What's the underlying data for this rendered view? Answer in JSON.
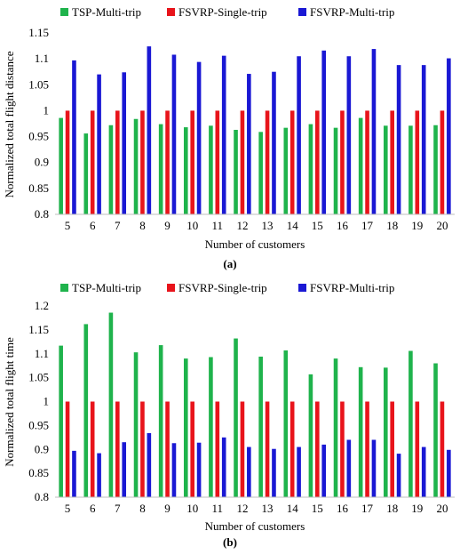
{
  "chart_data": [
    {
      "type": "bar",
      "panel_label": "(a)",
      "title": "",
      "xlabel": "Number of customers",
      "ylabel": "Normalized total flight distance",
      "ylim": [
        0.8,
        1.15
      ],
      "yticks": [
        0.8,
        0.85,
        0.9,
        0.95,
        1,
        1.05,
        1.1,
        1.15
      ],
      "ytick_labels": [
        "0.8",
        "0.85",
        "0.9",
        "0.95",
        "1",
        "1.05",
        "1.1",
        "1.15"
      ],
      "grid": false,
      "legend_position": "top",
      "categories": [
        "5",
        "6",
        "7",
        "8",
        "9",
        "10",
        "11",
        "12",
        "13",
        "14",
        "15",
        "16",
        "17",
        "18",
        "19",
        "20"
      ],
      "series": [
        {
          "name": "TSP-Multi-trip",
          "color": "#1fb34c",
          "values": [
            0.986,
            0.956,
            0.972,
            0.984,
            0.974,
            0.968,
            0.971,
            0.963,
            0.959,
            0.967,
            0.974,
            0.967,
            0.986,
            0.971,
            0.971,
            0.972
          ]
        },
        {
          "name": "FSVRP-Single-trip",
          "color": "#e8141b",
          "values": [
            1,
            1,
            1,
            1,
            1,
            1,
            1,
            1,
            1,
            1,
            1,
            1,
            1,
            1,
            1,
            1
          ]
        },
        {
          "name": "FSVRP-Multi-trip",
          "color": "#1a18d4",
          "values": [
            1.097,
            1.07,
            1.074,
            1.124,
            1.108,
            1.094,
            1.106,
            1.071,
            1.075,
            1.105,
            1.116,
            1.105,
            1.119,
            1.088,
            1.088,
            1.101
          ]
        }
      ]
    },
    {
      "type": "bar",
      "panel_label": "(b)",
      "title": "",
      "xlabel": "Number of customers",
      "ylabel": "Normalized total flight time",
      "ylim": [
        0.8,
        1.2
      ],
      "yticks": [
        0.8,
        0.85,
        0.9,
        0.95,
        1,
        1.05,
        1.1,
        1.15,
        1.2
      ],
      "ytick_labels": [
        "0.8",
        "0.85",
        "0.9",
        "0.95",
        "1",
        "1.05",
        "1.1",
        "1.15",
        "1.2"
      ],
      "grid": false,
      "legend_position": "top",
      "categories": [
        "5",
        "6",
        "7",
        "8",
        "9",
        "10",
        "11",
        "12",
        "13",
        "14",
        "15",
        "16",
        "17",
        "18",
        "19",
        "20"
      ],
      "series": [
        {
          "name": "TSP-Multi-trip",
          "color": "#1fb34c",
          "values": [
            1.117,
            1.162,
            1.186,
            1.103,
            1.118,
            1.09,
            1.093,
            1.132,
            1.094,
            1.107,
            1.057,
            1.09,
            1.072,
            1.071,
            1.106,
            1.08
          ]
        },
        {
          "name": "FSVRP-Single-trip",
          "color": "#e8141b",
          "values": [
            1,
            1,
            1,
            1,
            1,
            1,
            1,
            1,
            1,
            1,
            1,
            1,
            1,
            1,
            1,
            1
          ]
        },
        {
          "name": "FSVRP-Multi-trip",
          "color": "#1a18d4",
          "values": [
            0.897,
            0.892,
            0.915,
            0.934,
            0.913,
            0.914,
            0.925,
            0.905,
            0.901,
            0.905,
            0.91,
            0.92,
            0.92,
            0.891,
            0.905,
            0.899
          ]
        }
      ]
    }
  ]
}
